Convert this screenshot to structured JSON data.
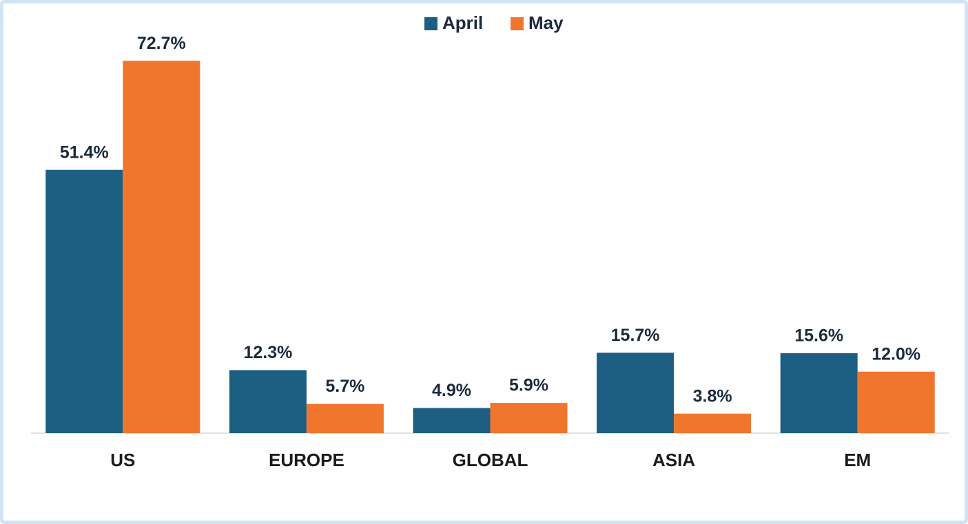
{
  "chart_data": {
    "type": "bar",
    "categories": [
      "US",
      "EUROPE",
      "GLOBAL",
      "ASIA",
      "EM"
    ],
    "series": [
      {
        "name": "April",
        "color": "#1d5f82",
        "values": [
          51.4,
          12.3,
          4.9,
          15.7,
          15.6
        ],
        "value_labels": [
          "51.4%",
          "12.3%",
          "4.9%",
          "15.7%",
          "15.6%"
        ]
      },
      {
        "name": "May",
        "color": "#f0762e",
        "values": [
          72.7,
          5.7,
          5.9,
          3.8,
          12.0
        ],
        "value_labels": [
          "72.7%",
          "5.7%",
          "5.9%",
          "3.8%",
          "12.0%"
        ]
      }
    ],
    "ylim": [
      0,
      80
    ],
    "legend": "top"
  }
}
